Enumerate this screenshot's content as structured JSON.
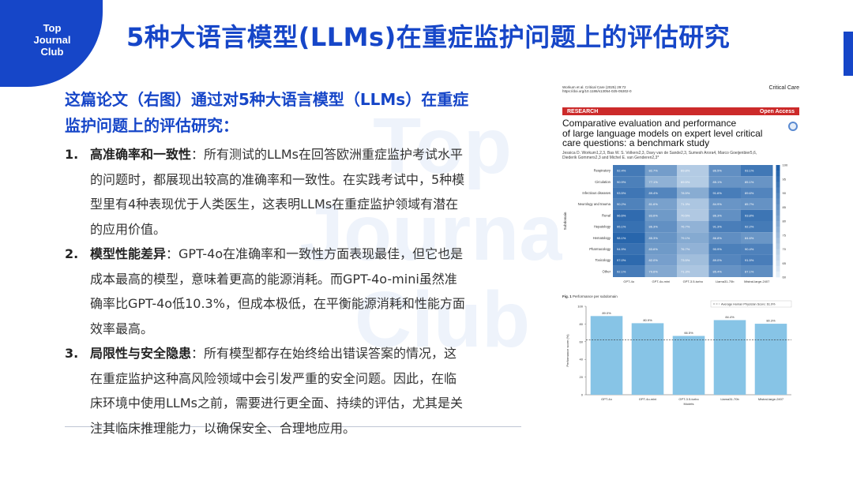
{
  "badge": {
    "line1": "Top",
    "line2": "Journal",
    "line3": "Club"
  },
  "page_title": "5种大语言模型(LLMs)在重症监护问题上的评估研究",
  "watermark": {
    "line1": "Top",
    "line2": "Journal",
    "line3": "Club"
  },
  "intro": {
    "line1": "这篇论文（右图）通过对5种大语言模型（LLMs）在重症",
    "line2": "监护问题上的评估研究："
  },
  "items": [
    {
      "num": "1.",
      "head": "高准确率和一致性",
      "lines": [
        "：所有测试的LLMs在回答欧洲重症监护考试水平",
        "的问题时，都展现出较高的准确率和一致性。在实践考试中，5种模",
        "型里有4种表现优于人类医生，这表明LLMs在重症监护领域有潜在",
        "的应用价值。"
      ]
    },
    {
      "num": "2.",
      "head": "模型性能差异",
      "lines": [
        "：GPT-4o在准确率和一致性方面表现最佳，但它也是",
        "成本最高的模型，意味着更高的能源消耗。而GPT-4o-mini虽然准",
        "确率比GPT-4o低10.3%，但成本极低，在平衡能源消耗和性能方面",
        "效率最高。"
      ]
    },
    {
      "num": "3.",
      "head": "局限性与安全隐患",
      "lines": [
        "：所有模型都存在始终给出错误答案的情况，这",
        "在重症监护这种高风险领域中会引发严重的安全问题。因此，在临",
        "床环境中使用LLMs之前，需要进行更全面、持续的评估，尤其是关",
        "注其临床推理能力，以确保安全、合理地应用。"
      ]
    }
  ],
  "paper": {
    "citation_line1": "Workum et al. Critical Care    (2025) 29:72",
    "citation_line2": "https://doi.org/10.1186/s13054-025-05302-0",
    "journal": "Critical Care",
    "banner_left": "RESEARCH",
    "banner_right": "Open Access",
    "title_lines": [
      "Comparative evaluation and performance",
      "of large language models on expert level critical",
      "care questions: a benchmark study"
    ],
    "authors_line1": "Jessica D. Workum1,2,3, Bas W. S. Volkers2,3, Davy van de Sande2,3, Sumesh Arora4, Marco Goeijenbier5,6,",
    "authors_line2": "Diederik Gommers2,3 and Michel E. van Genderen2,3*",
    "fig1_caption_bold": "Fig. 1",
    "fig1_caption": "Performance per subdomain"
  },
  "chart_data": [
    {
      "type": "heatmap",
      "title": "",
      "ylabel": "Subdomain",
      "xlabel": "",
      "columns": [
        "GPT-4o",
        "GPT-4o-mini",
        "GPT-3.5-turbo",
        "Llama31-70b",
        "Mistral-large-2407"
      ],
      "rows": [
        "Respiratory",
        "Circulation",
        "Infectious diseases",
        "Neurology and trauma",
        "Renal",
        "Hepatology",
        "Hematology",
        "Pharmacology",
        "Toxicology",
        "Other"
      ],
      "values": [
        [
          92.4,
          82.7,
          69.8,
          86.5,
          93.1
        ],
        [
          90.9,
          77.1,
          69.5,
          85.1,
          85.1
        ],
        [
          93.5,
          89.4,
          78.5,
          91.6,
          89.6
        ],
        [
          90.2,
          81.6,
          71.3,
          84.9,
          85.7
        ],
        [
          96.6,
          83.6,
          70.5,
          86.3,
          93.8
        ],
        [
          95.1,
          86.3,
          76.7,
          91.3,
          92.2
        ],
        [
          98.1,
          85.3,
          79.1,
          86.8,
          84.6
        ],
        [
          94.9,
          83.6,
          76.7,
          90.9,
          90.4
        ],
        [
          97.0,
          82.0,
          73.5,
          89.0,
          91.5
        ],
        [
          92.1,
          79.6,
          71.3,
          85.4,
          87.1
        ]
      ],
      "colorbar_ticks": [
        "100",
        "95",
        "90",
        "85",
        "80",
        "75",
        "70",
        "65",
        "60"
      ],
      "colors": {
        "low": "#e3eef7",
        "high": "#1f5fa8"
      }
    },
    {
      "type": "bar",
      "title": "",
      "categories": [
        "GPT-4o",
        "GPT-4o-mini",
        "GPT-3.5-turbo",
        "Llama31-70b",
        "Mistral-large-2407"
      ],
      "values": [
        89.0,
        80.9,
        66.5,
        84.4,
        80.3
      ],
      "value_labels": [
        "89.0%",
        "80.9%",
        "66.5%",
        "84.4%",
        "80.3%"
      ],
      "xlabel": "Models",
      "ylabel": "Performance score (%)",
      "ylim": [
        0,
        100
      ],
      "yticks": [
        "0",
        "20",
        "40",
        "60",
        "80",
        "100"
      ],
      "reference_line": {
        "value": 61.9,
        "label": "Average Human Physician Score: 61.9%"
      },
      "colors": {
        "bar": "#87c4e6",
        "reference": "#333333"
      }
    }
  ]
}
